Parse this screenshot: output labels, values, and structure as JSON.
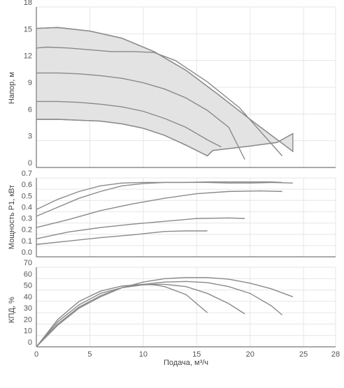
{
  "chart_data": [
    {
      "type": "line",
      "ylabel": "Напор, м",
      "xlim": [
        0,
        28
      ],
      "ylim": [
        0,
        18
      ],
      "yticks": [
        0,
        3,
        6,
        9,
        12,
        15,
        18
      ],
      "shaded_envelope": true,
      "series": [
        {
          "x": [
            0,
            2,
            5,
            8,
            11,
            14,
            17,
            20,
            24
          ],
          "y": [
            15.6,
            15.7,
            15.3,
            14.5,
            13.0,
            10.9,
            8.2,
            5.4,
            1.8
          ]
        },
        {
          "x": [
            0,
            1,
            3,
            5,
            7,
            9,
            11,
            13,
            16,
            19,
            23
          ],
          "y": [
            13.4,
            13.5,
            13.4,
            13.2,
            13.0,
            13.0,
            12.9,
            12.0,
            9.6,
            6.7,
            1.3
          ]
        },
        {
          "x": [
            0,
            2,
            4,
            6,
            8,
            10,
            12,
            14,
            16,
            18,
            19.5
          ],
          "y": [
            10.6,
            10.6,
            10.5,
            10.3,
            10.0,
            9.5,
            8.8,
            7.8,
            6.4,
            4.5,
            0.9
          ]
        },
        {
          "x": [
            0,
            2,
            4,
            6,
            8,
            10,
            12,
            14,
            16,
            17.3
          ],
          "y": [
            7.4,
            7.4,
            7.3,
            7.1,
            6.8,
            6.3,
            5.5,
            4.5,
            3.1,
            2.3
          ]
        },
        {
          "x": [
            0,
            2,
            4,
            6,
            8,
            10,
            12,
            14,
            16
          ],
          "y": [
            5.4,
            5.4,
            5.3,
            5.2,
            4.9,
            4.4,
            3.6,
            2.5,
            1.3
          ]
        },
        {
          "x": [
            16,
            16.5,
            20,
            22.5,
            24
          ],
          "y": [
            1.3,
            1.9,
            2.4,
            2.8,
            3.8
          ]
        }
      ]
    },
    {
      "type": "line",
      "ylabel": "Мощность P1, кВт",
      "xlim": [
        0,
        28
      ],
      "ylim": [
        0,
        0.7
      ],
      "yticks": [
        0,
        0.1,
        0.2,
        0.3,
        0.4,
        0.5,
        0.6,
        0.7
      ],
      "series": [
        {
          "x": [
            0,
            2,
            4,
            6,
            8,
            10,
            12,
            14,
            16,
            18,
            20,
            22,
            24
          ],
          "y": [
            0.42,
            0.51,
            0.58,
            0.63,
            0.655,
            0.66,
            0.66,
            0.66,
            0.66,
            0.655,
            0.655,
            0.66,
            0.655
          ]
        },
        {
          "x": [
            0,
            2,
            4,
            6,
            8,
            10,
            12,
            14,
            16,
            18,
            20,
            22,
            23
          ],
          "y": [
            0.36,
            0.44,
            0.52,
            0.58,
            0.63,
            0.65,
            0.66,
            0.66,
            0.665,
            0.665,
            0.665,
            0.665,
            0.66
          ]
        },
        {
          "x": [
            0,
            3,
            6,
            9,
            12,
            15,
            18,
            21,
            23
          ],
          "y": [
            0.26,
            0.33,
            0.41,
            0.47,
            0.52,
            0.56,
            0.58,
            0.585,
            0.58
          ]
        },
        {
          "x": [
            0,
            3,
            6,
            9,
            12,
            15,
            18,
            19.5
          ],
          "y": [
            0.16,
            0.22,
            0.26,
            0.29,
            0.315,
            0.34,
            0.345,
            0.34
          ]
        },
        {
          "x": [
            0,
            3,
            6,
            9,
            12,
            14,
            16
          ],
          "y": [
            0.11,
            0.14,
            0.17,
            0.195,
            0.225,
            0.23,
            0.23
          ]
        }
      ]
    },
    {
      "type": "line",
      "ylabel": "КПД, %",
      "xlabel": "Подача, м³/ч",
      "xlim": [
        0,
        28
      ],
      "ylim": [
        0,
        70
      ],
      "yticks": [
        0,
        10,
        20,
        30,
        40,
        50,
        60,
        70
      ],
      "xticks": [
        0,
        5,
        10,
        15,
        20,
        25,
        28
      ],
      "series": [
        {
          "x": [
            0,
            2,
            4,
            6,
            8,
            10,
            12,
            14,
            16,
            18,
            20,
            22,
            24
          ],
          "y": [
            0,
            19,
            34,
            44,
            52,
            57,
            60,
            61,
            61,
            59.5,
            56,
            51,
            44
          ]
        },
        {
          "x": [
            0,
            2,
            4,
            6,
            8,
            10,
            12,
            14,
            16,
            18,
            20,
            22,
            23
          ],
          "y": [
            0,
            20,
            35,
            45,
            52,
            55,
            57,
            57.5,
            56.5,
            53,
            47,
            36,
            28
          ]
        },
        {
          "x": [
            0,
            2,
            4,
            6,
            8,
            10,
            11,
            12,
            14,
            16,
            18,
            19.5
          ],
          "y": [
            0,
            22,
            37,
            47,
            52,
            54.5,
            55,
            55,
            53,
            47,
            38,
            29
          ]
        },
        {
          "x": [
            0,
            2,
            4,
            6,
            8,
            10,
            11,
            12,
            14,
            16
          ],
          "y": [
            0,
            24,
            40,
            49,
            53.5,
            55,
            54.5,
            53,
            46,
            30
          ]
        }
      ]
    }
  ]
}
